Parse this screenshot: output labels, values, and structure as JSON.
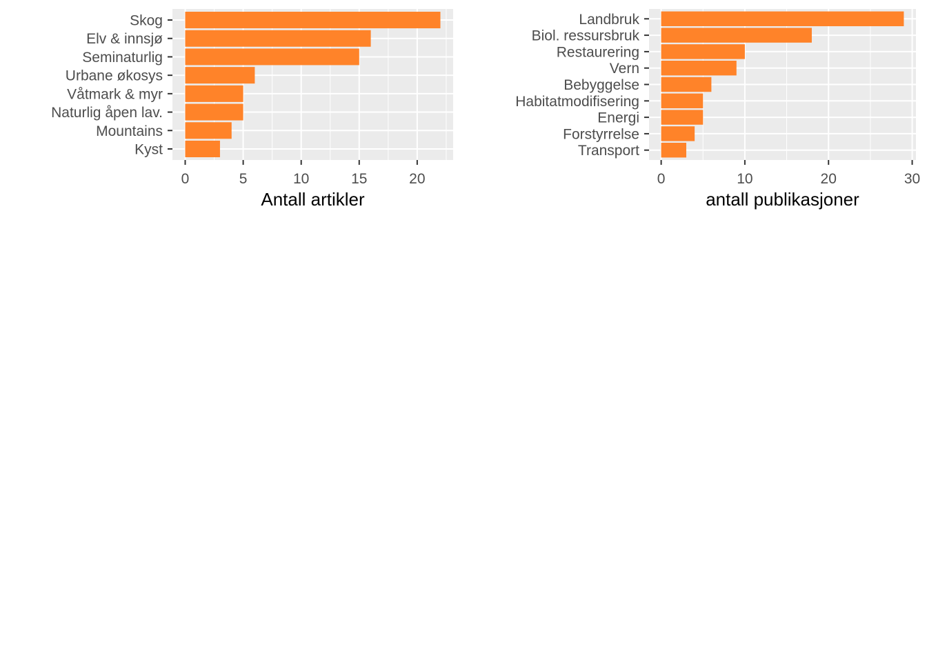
{
  "chart_data": [
    {
      "type": "bar",
      "orientation": "horizontal",
      "categories": [
        "Skog",
        "Elv & innsjø",
        "Seminaturlig",
        "Urbane økosys",
        "Våtmark & myr",
        "Naturlig åpen lav.",
        "Mountains",
        "Kyst"
      ],
      "values": [
        22,
        16,
        15,
        6,
        5,
        5,
        4,
        3
      ],
      "xlabel": "Antall artikler",
      "ylabel": "",
      "xlim": [
        -1.1,
        23.1
      ],
      "xticks": [
        0,
        5,
        10,
        15,
        20
      ],
      "grid": true,
      "bar_color": "#FF8329",
      "panel_color": "#EBEBEB"
    },
    {
      "type": "bar",
      "orientation": "horizontal",
      "categories": [
        "Landbruk",
        "Biol. ressursbruk",
        "Restaurering",
        "Vern",
        "Bebyggelse",
        "Habitatmodifisering",
        "Energi",
        "Forstyrrelse",
        "Transport"
      ],
      "values": [
        29,
        18,
        10,
        9,
        6,
        5,
        5,
        4,
        3
      ],
      "xlabel": "antall publikasjoner",
      "ylabel": "",
      "xlim": [
        -1.45,
        30.45
      ],
      "xticks": [
        0,
        10,
        20,
        30
      ],
      "grid": true,
      "bar_color": "#FF8329",
      "panel_color": "#EBEBEB"
    }
  ]
}
